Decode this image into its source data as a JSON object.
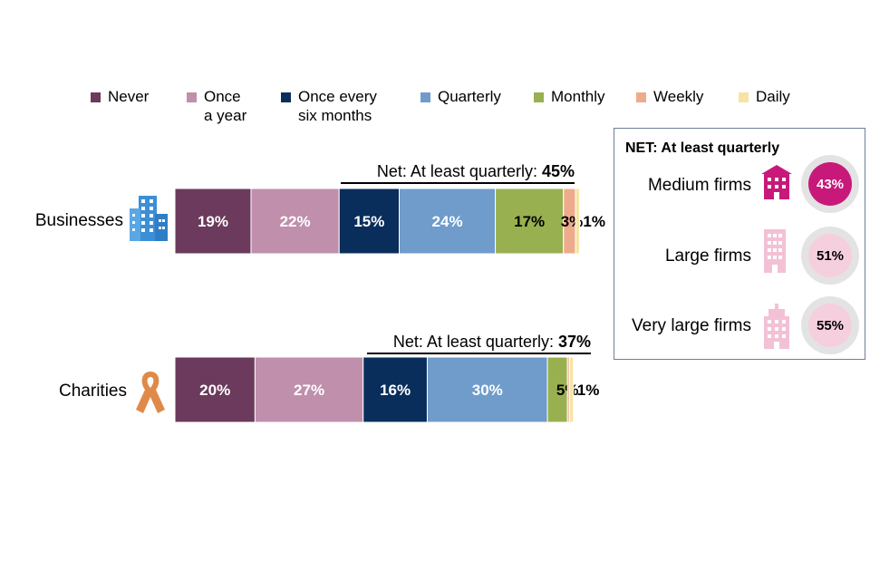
{
  "legend": [
    {
      "line1": "Never",
      "line2": "",
      "color": "#6b3a5c"
    },
    {
      "line1": "Once",
      "line2": "a year",
      "color": "#bf8fac"
    },
    {
      "line1": "Once every",
      "line2": "six months",
      "color": "#0a2e5c"
    },
    {
      "line1": "Quarterly",
      "line2": "",
      "color": "#6f9ccb"
    },
    {
      "line1": "Monthly",
      "line2": "",
      "color": "#99b050"
    },
    {
      "line1": "Weekly",
      "line2": "",
      "color": "#eeab8c"
    },
    {
      "line1": "Daily",
      "line2": "",
      "color": "#f8e3a3"
    }
  ],
  "chart_data": {
    "type": "bar",
    "orientation": "horizontal-stacked",
    "categories": [
      "Businesses",
      "Charities"
    ],
    "series": [
      {
        "name": "Never",
        "values": [
          19,
          20
        ]
      },
      {
        "name": "Once a year",
        "values": [
          22,
          27
        ]
      },
      {
        "name": "Once every six months",
        "values": [
          15,
          16
        ]
      },
      {
        "name": "Quarterly",
        "values": [
          24,
          30
        ]
      },
      {
        "name": "Monthly",
        "values": [
          17,
          5
        ]
      },
      {
        "name": "Weekly",
        "values": [
          3,
          0.5
        ]
      },
      {
        "name": "Daily",
        "values": [
          1,
          1
        ]
      }
    ],
    "labels": [
      [
        "19%",
        "22%",
        "15%",
        "24%",
        "17%",
        "3%",
        "1%"
      ],
      [
        "20%",
        "27%",
        "16%",
        "30%",
        "5%",
        "",
        "1%"
      ]
    ],
    "net": [
      {
        "prefix": "Net: At least quarterly: ",
        "value": "45%"
      },
      {
        "prefix": "Net: At least quarterly: ",
        "value": "37%"
      }
    ],
    "legend_position": "top"
  },
  "net_box": {
    "title": "NET: At least quarterly",
    "items": [
      {
        "label": "Medium firms",
        "value": "43%",
        "value_num": 43,
        "icon": "building-icon",
        "circle_color": "#c8197a",
        "text_color": "#ffffff",
        "icon_color": "#c8197a"
      },
      {
        "label": "Large firms",
        "value": "51%",
        "value_num": 51,
        "icon": "building-icon",
        "circle_color": "#f6cfdf",
        "text_color": "#000000",
        "icon_color": "#f3c1d6"
      },
      {
        "label": "Very large firms",
        "value": "55%",
        "value_num": 55,
        "icon": "building-icon",
        "circle_color": "#f6cfdf",
        "text_color": "#000000",
        "icon_color": "#f3c1d6"
      }
    ]
  }
}
